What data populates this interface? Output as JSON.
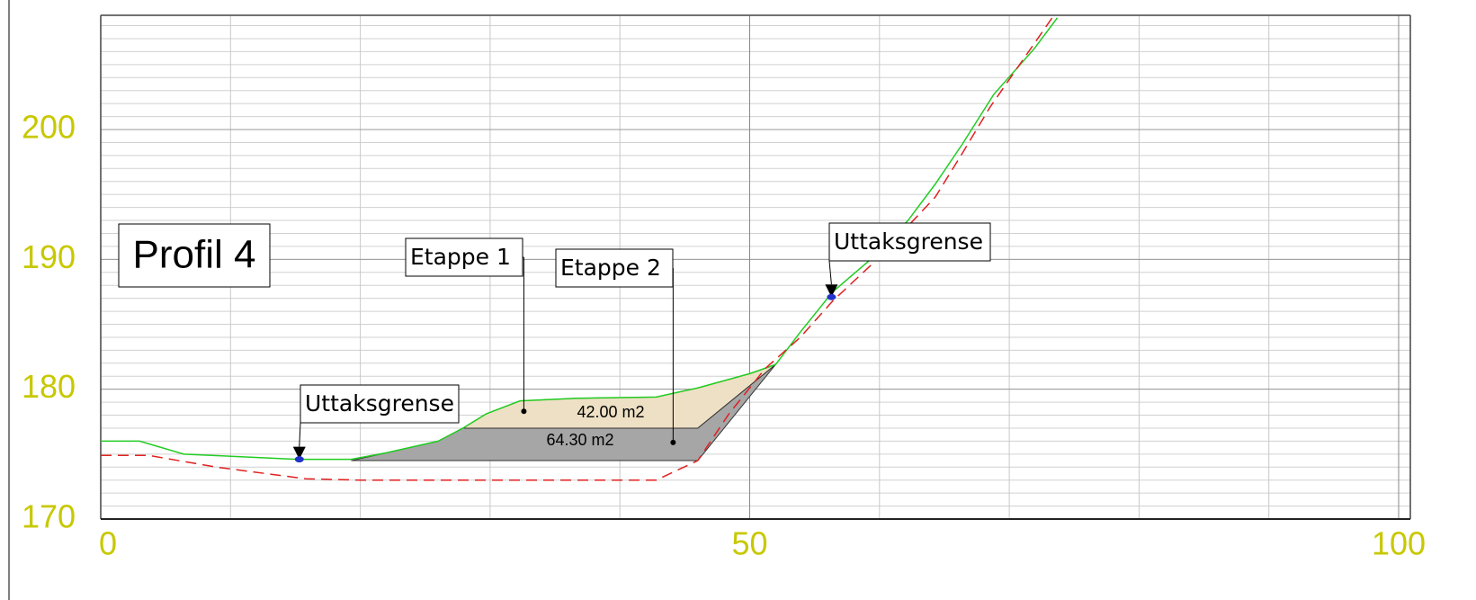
{
  "chart_data": {
    "type": "line",
    "title": "Profil 4",
    "xlim": [
      0,
      100
    ],
    "xticks": [
      0,
      50,
      100
    ],
    "ylim": [
      170,
      208.8
    ],
    "yticks": [
      170,
      180,
      190,
      200
    ],
    "grid": true,
    "series": [
      {
        "color": "#22cc22",
        "style": "solid",
        "x": [
          0,
          3,
          6.4,
          15.1,
          19.3,
          22,
          26,
          27.9,
          29.7,
          32.3,
          36.6,
          42.8,
          46,
          50,
          52,
          53.9,
          56.4,
          59.2,
          62.2,
          64.3,
          66.4,
          68.8,
          71.9,
          73.7
        ],
        "values": [
          176.0,
          176.0,
          175.0,
          174.6,
          174.6,
          175.1,
          176.0,
          177.0,
          178.1,
          179.1,
          179.3,
          179.4,
          180.1,
          181.2,
          181.9,
          184.4,
          187.5,
          189.9,
          193.0,
          195.8,
          198.9,
          202.7,
          206.2,
          208.6
        ]
      },
      {
        "color": "#e02020",
        "style": "dashed",
        "x": [
          0,
          3.7,
          8.9,
          15.8,
          20,
          42.8,
          46,
          48.4,
          51.2,
          53.9,
          56.4,
          59.5,
          64.3,
          66.4,
          68.5,
          73.3
        ],
        "values": [
          174.9,
          174.9,
          174.0,
          173.1,
          173.0,
          173.0,
          174.5,
          178.1,
          181.6,
          184.0,
          186.8,
          189.7,
          194.8,
          198.2,
          201.7,
          208.6
        ]
      }
    ],
    "areas": [
      {
        "label": "42.00 m2",
        "color": "#eee0c4",
        "x": [
          27.9,
          29.7,
          32.3,
          36.6,
          42.8,
          46,
          50,
          52,
          46
        ],
        "values": [
          177.0,
          178.1,
          179.1,
          179.3,
          179.4,
          180.1,
          181.2,
          181.9,
          177.0
        ]
      },
      {
        "label": "64.30 m2",
        "color": "#a6a6a6",
        "x": [
          19.3,
          22,
          26,
          27.9,
          46,
          52,
          46
        ],
        "values": [
          174.5,
          175.1,
          176.0,
          177.0,
          177.0,
          181.9,
          174.5
        ]
      }
    ],
    "annotations": [
      {
        "text": "Etappe 1",
        "x": 32.6,
        "y": 178.3
      },
      {
        "text": "Etappe 2",
        "x": 44.1,
        "y": 175.9
      },
      {
        "text": "Uttaksgrense",
        "x": 15.3,
        "y": 174.6
      },
      {
        "text": "Uttaksgrense",
        "x": 56.3,
        "y": 187.1
      }
    ]
  }
}
